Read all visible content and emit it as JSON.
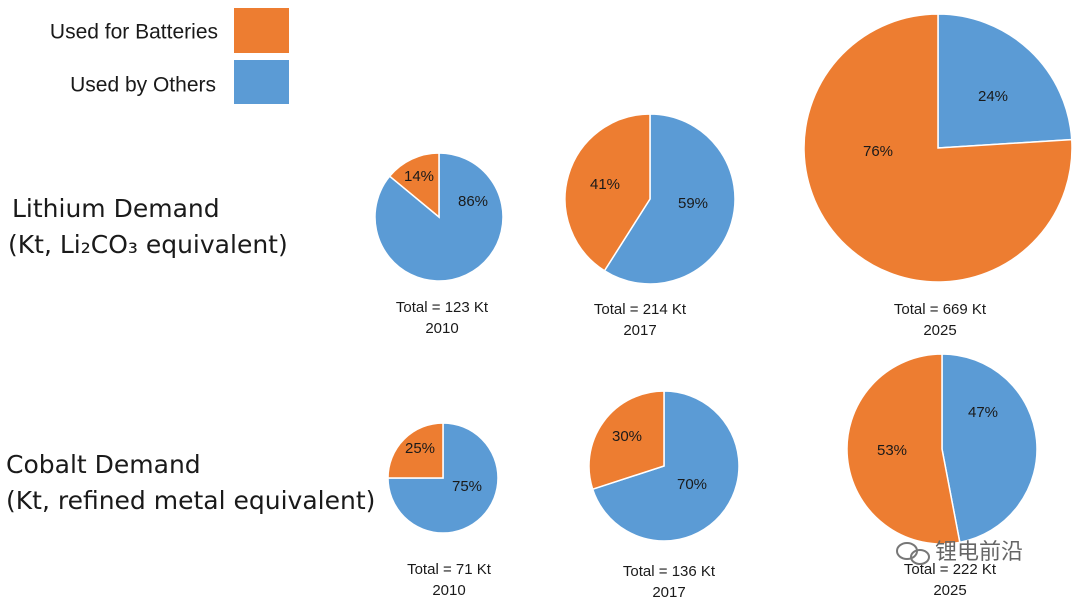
{
  "legend": [
    {
      "name": "Used for Batteries",
      "color": "#ed7d31"
    },
    {
      "name": "Used by Others",
      "color": "#5b9bd5"
    }
  ],
  "row_labels": [
    {
      "title": "Lithium Demand",
      "unit": "(Kt, Li₂CO₃ equivalent)"
    },
    {
      "title": "Cobalt Demand",
      "unit": "(Kt, refined metal equivalent)"
    }
  ],
  "chart_data": [
    {
      "type": "pie",
      "values": [
        14,
        86
      ],
      "value_labels": [
        "14%",
        "86%"
      ],
      "total_label": "Total = 123 Kt",
      "year": "2010"
    },
    {
      "type": "pie",
      "values": [
        41,
        59
      ],
      "value_labels": [
        "41%",
        "59%"
      ],
      "total_label": "Total = 214 Kt",
      "year": "2017"
    },
    {
      "type": "pie",
      "values": [
        76,
        24
      ],
      "value_labels": [
        "76%",
        "24%"
      ],
      "total_label": "Total = 669 Kt",
      "year": "2025"
    },
    {
      "type": "pie",
      "values": [
        25,
        75
      ],
      "value_labels": [
        "25%",
        "75%"
      ],
      "total_label": "Total = 71 Kt",
      "year": "2010"
    },
    {
      "type": "pie",
      "values": [
        30,
        70
      ],
      "value_labels": [
        "30%",
        "70%"
      ],
      "total_label": "Total = 136 Kt",
      "year": "2017"
    },
    {
      "type": "pie",
      "values": [
        53,
        47
      ],
      "value_labels": [
        "53%",
        "47%"
      ],
      "total_label": "Total = 222 Kt",
      "year": "2025"
    }
  ],
  "watermark": "锂电前沿"
}
